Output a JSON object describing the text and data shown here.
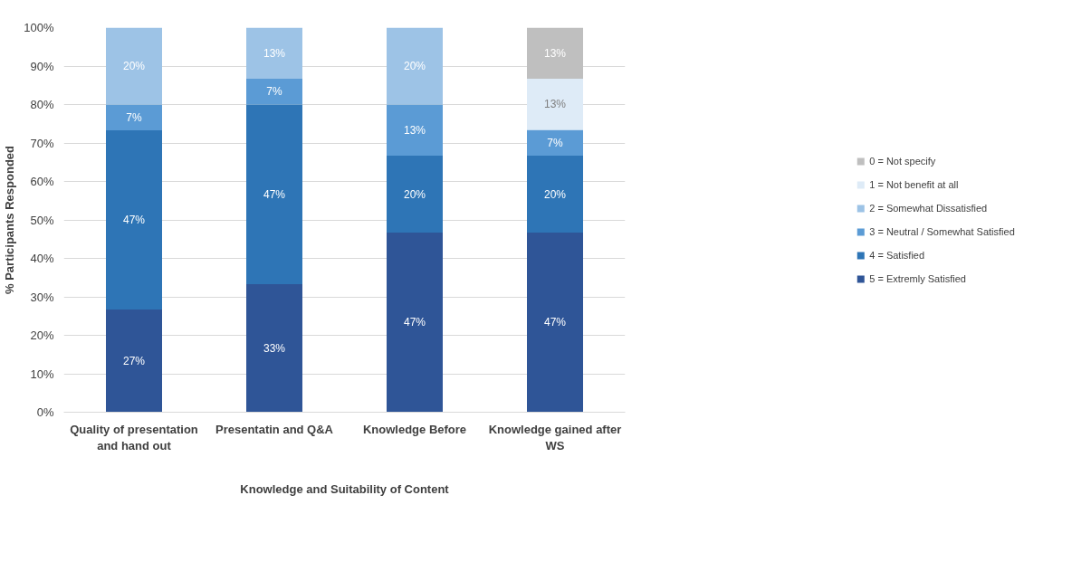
{
  "chart_data": {
    "type": "bar",
    "stacked": true,
    "xlabel": "Knowledge and Suitability of Content",
    "ylabel": "% Participants Responded",
    "categories": [
      "Quality of presentation and hand out",
      "Presentatin and Q&A",
      "Knowledge Before",
      "Knowledge gained after WS"
    ],
    "ylim": [
      0,
      100
    ],
    "yticks": [
      {
        "value": 0,
        "label": "0%"
      },
      {
        "value": 10,
        "label": "10%"
      },
      {
        "value": 20,
        "label": "20%"
      },
      {
        "value": 30,
        "label": "30%"
      },
      {
        "value": 40,
        "label": "40%"
      },
      {
        "value": 50,
        "label": "50%"
      },
      {
        "value": 60,
        "label": "60%"
      },
      {
        "value": 70,
        "label": "70%"
      },
      {
        "value": 80,
        "label": "80%"
      },
      {
        "value": 90,
        "label": "90%"
      },
      {
        "value": 100,
        "label": "100%"
      }
    ],
    "grid": "y",
    "legend": "right",
    "series": [
      {
        "name": "5 = Extremly Satisfied",
        "color": "#2f5597",
        "values": [
          26.7,
          33.3,
          46.7,
          46.7
        ],
        "value_labels": [
          "27%",
          "33%",
          "47%",
          "47%"
        ]
      },
      {
        "name": "4 = Satisfied",
        "color": "#2e75b6",
        "values": [
          46.6,
          46.7,
          20.0,
          20.0
        ],
        "value_labels": [
          "47%",
          "47%",
          "20%",
          "20%"
        ]
      },
      {
        "name": "3 = Neutral / Somewhat Satisfied",
        "color": "#5b9bd5",
        "values": [
          6.7,
          6.7,
          13.3,
          6.7
        ],
        "value_labels": [
          "7%",
          "7%",
          "13%",
          "7%"
        ]
      },
      {
        "name": "2 = Somewhat Dissatisfied",
        "color": "#9dc3e6",
        "values": [
          20.0,
          13.3,
          20.0,
          null
        ],
        "value_labels": [
          "20%",
          "13%",
          "20%",
          null
        ]
      },
      {
        "name": "1 = Not benefit at all",
        "color": "#deebf7",
        "values": [
          null,
          null,
          null,
          13.3
        ],
        "value_labels": [
          null,
          null,
          null,
          "13%"
        ]
      },
      {
        "name": "0 = Not specify",
        "color": "#bfbfbf",
        "values": [
          null,
          null,
          null,
          13.3
        ],
        "value_labels": [
          null,
          null,
          null,
          "13%"
        ]
      }
    ]
  }
}
